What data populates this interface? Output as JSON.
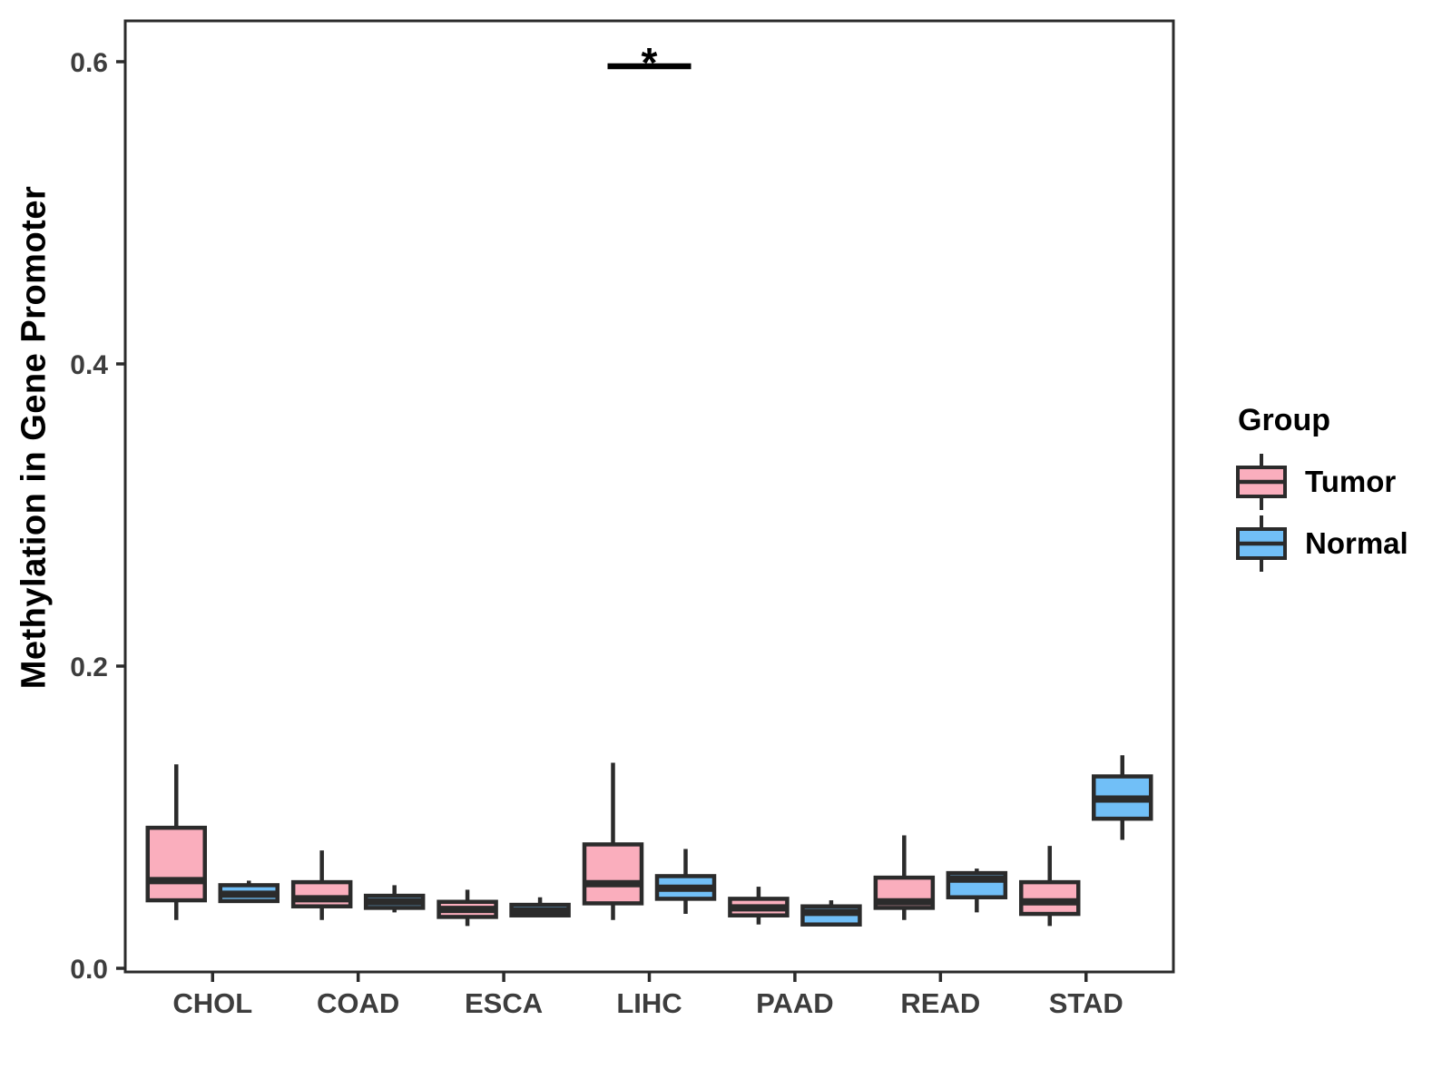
{
  "chart_data": {
    "type": "boxplot",
    "title": "",
    "xlabel": "",
    "ylabel": "Methylation in Gene Promoter",
    "ylim": [
      0,
      0.62
    ],
    "yticks": [
      {
        "value": 0.0,
        "label": "0.0"
      },
      {
        "value": 0.2,
        "label": "0.2"
      },
      {
        "value": 0.4,
        "label": "0.4"
      },
      {
        "value": 0.6,
        "label": "0.6"
      }
    ],
    "categories": [
      "CHOL",
      "COAD",
      "ESCA",
      "LIHC",
      "PAAD",
      "READ",
      "STAD"
    ],
    "grid": "off",
    "legend": {
      "title": "Group",
      "position": "right",
      "entries": [
        {
          "label": "Tumor",
          "color": "#FAAEBD"
        },
        {
          "label": "Normal",
          "color": "#71BFF7"
        }
      ]
    },
    "colors": {
      "tumor_fill": "#FAAEBD",
      "normal_fill": "#71BFF7",
      "box_stroke": "#2b2b2b",
      "panel_border": "#2b2b2b",
      "tick_text": "#3d3d3d",
      "background": "#ffffff"
    },
    "series": [
      {
        "name": "Tumor",
        "color": "#FAAEBD",
        "boxes": [
          {
            "category": "CHOL",
            "whislo": 0.032,
            "q1": 0.045,
            "med": 0.058,
            "q3": 0.093,
            "whishi": 0.135
          },
          {
            "category": "COAD",
            "whislo": 0.032,
            "q1": 0.041,
            "med": 0.046,
            "q3": 0.057,
            "whishi": 0.078
          },
          {
            "category": "ESCA",
            "whislo": 0.028,
            "q1": 0.034,
            "med": 0.039,
            "q3": 0.044,
            "whishi": 0.052
          },
          {
            "category": "LIHC",
            "whislo": 0.032,
            "q1": 0.043,
            "med": 0.056,
            "q3": 0.082,
            "whishi": 0.136
          },
          {
            "category": "PAAD",
            "whislo": 0.029,
            "q1": 0.035,
            "med": 0.04,
            "q3": 0.046,
            "whishi": 0.054
          },
          {
            "category": "READ",
            "whislo": 0.032,
            "q1": 0.04,
            "med": 0.044,
            "q3": 0.06,
            "whishi": 0.088
          },
          {
            "category": "STAD",
            "whislo": 0.028,
            "q1": 0.036,
            "med": 0.044,
            "q3": 0.057,
            "whishi": 0.081
          }
        ]
      },
      {
        "name": "Normal",
        "color": "#71BFF7",
        "boxes": [
          {
            "category": "CHOL",
            "whislo": 0.0435,
            "q1": 0.0445,
            "med": 0.049,
            "q3": 0.055,
            "whishi": 0.058
          },
          {
            "category": "COAD",
            "whislo": 0.037,
            "q1": 0.04,
            "med": 0.044,
            "q3": 0.048,
            "whishi": 0.055
          },
          {
            "category": "ESCA",
            "whislo": 0.034,
            "q1": 0.035,
            "med": 0.038,
            "q3": 0.042,
            "whishi": 0.047
          },
          {
            "category": "LIHC",
            "whislo": 0.036,
            "q1": 0.046,
            "med": 0.053,
            "q3": 0.061,
            "whishi": 0.079
          },
          {
            "category": "PAAD",
            "whislo": 0.029,
            "q1": 0.029,
            "med": 0.037,
            "q3": 0.041,
            "whishi": 0.045
          },
          {
            "category": "READ",
            "whislo": 0.037,
            "q1": 0.047,
            "med": 0.059,
            "q3": 0.063,
            "whishi": 0.066
          },
          {
            "category": "STAD",
            "whislo": 0.085,
            "q1": 0.099,
            "med": 0.112,
            "q3": 0.127,
            "whishi": 0.141
          }
        ]
      }
    ],
    "annotations": [
      {
        "type": "significance",
        "label": "*",
        "category": "LIHC",
        "y_value": 0.597,
        "spans": [
          "Tumor",
          "Normal"
        ]
      }
    ]
  }
}
